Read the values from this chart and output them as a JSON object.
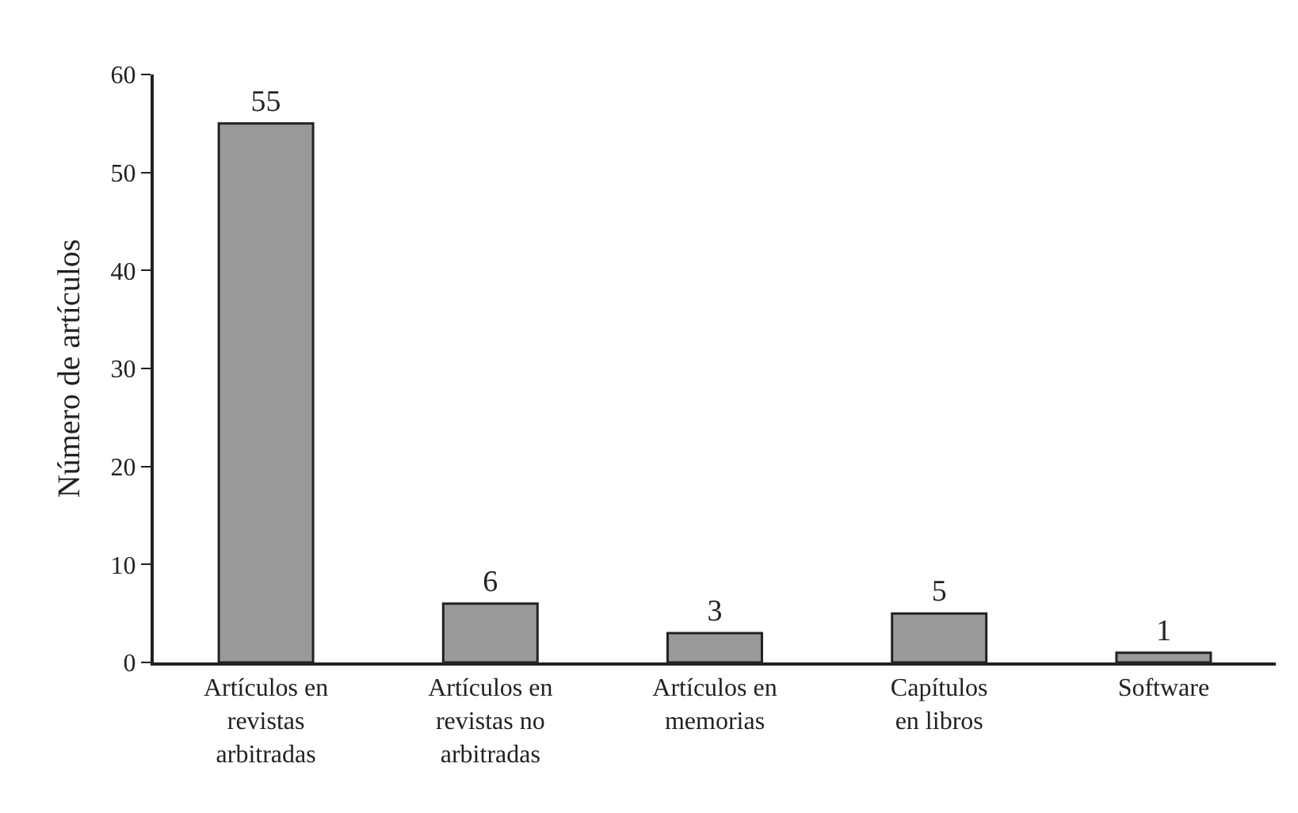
{
  "chart_data": {
    "type": "bar",
    "ylabel": "Número de artículos",
    "categories": [
      "Artículos en\nrevistas\narbitradas",
      "Artículos en\nrevistas no\narbitradas",
      "Artículos en\nmemorias",
      "Capítulos\nen libros",
      "Software"
    ],
    "values": [
      55,
      6,
      3,
      5,
      1
    ],
    "color": "#999999",
    "ylim": [
      0,
      60
    ],
    "yticks": [
      0,
      10,
      20,
      30,
      40,
      50,
      60
    ],
    "grid": false,
    "data_labels": true
  }
}
